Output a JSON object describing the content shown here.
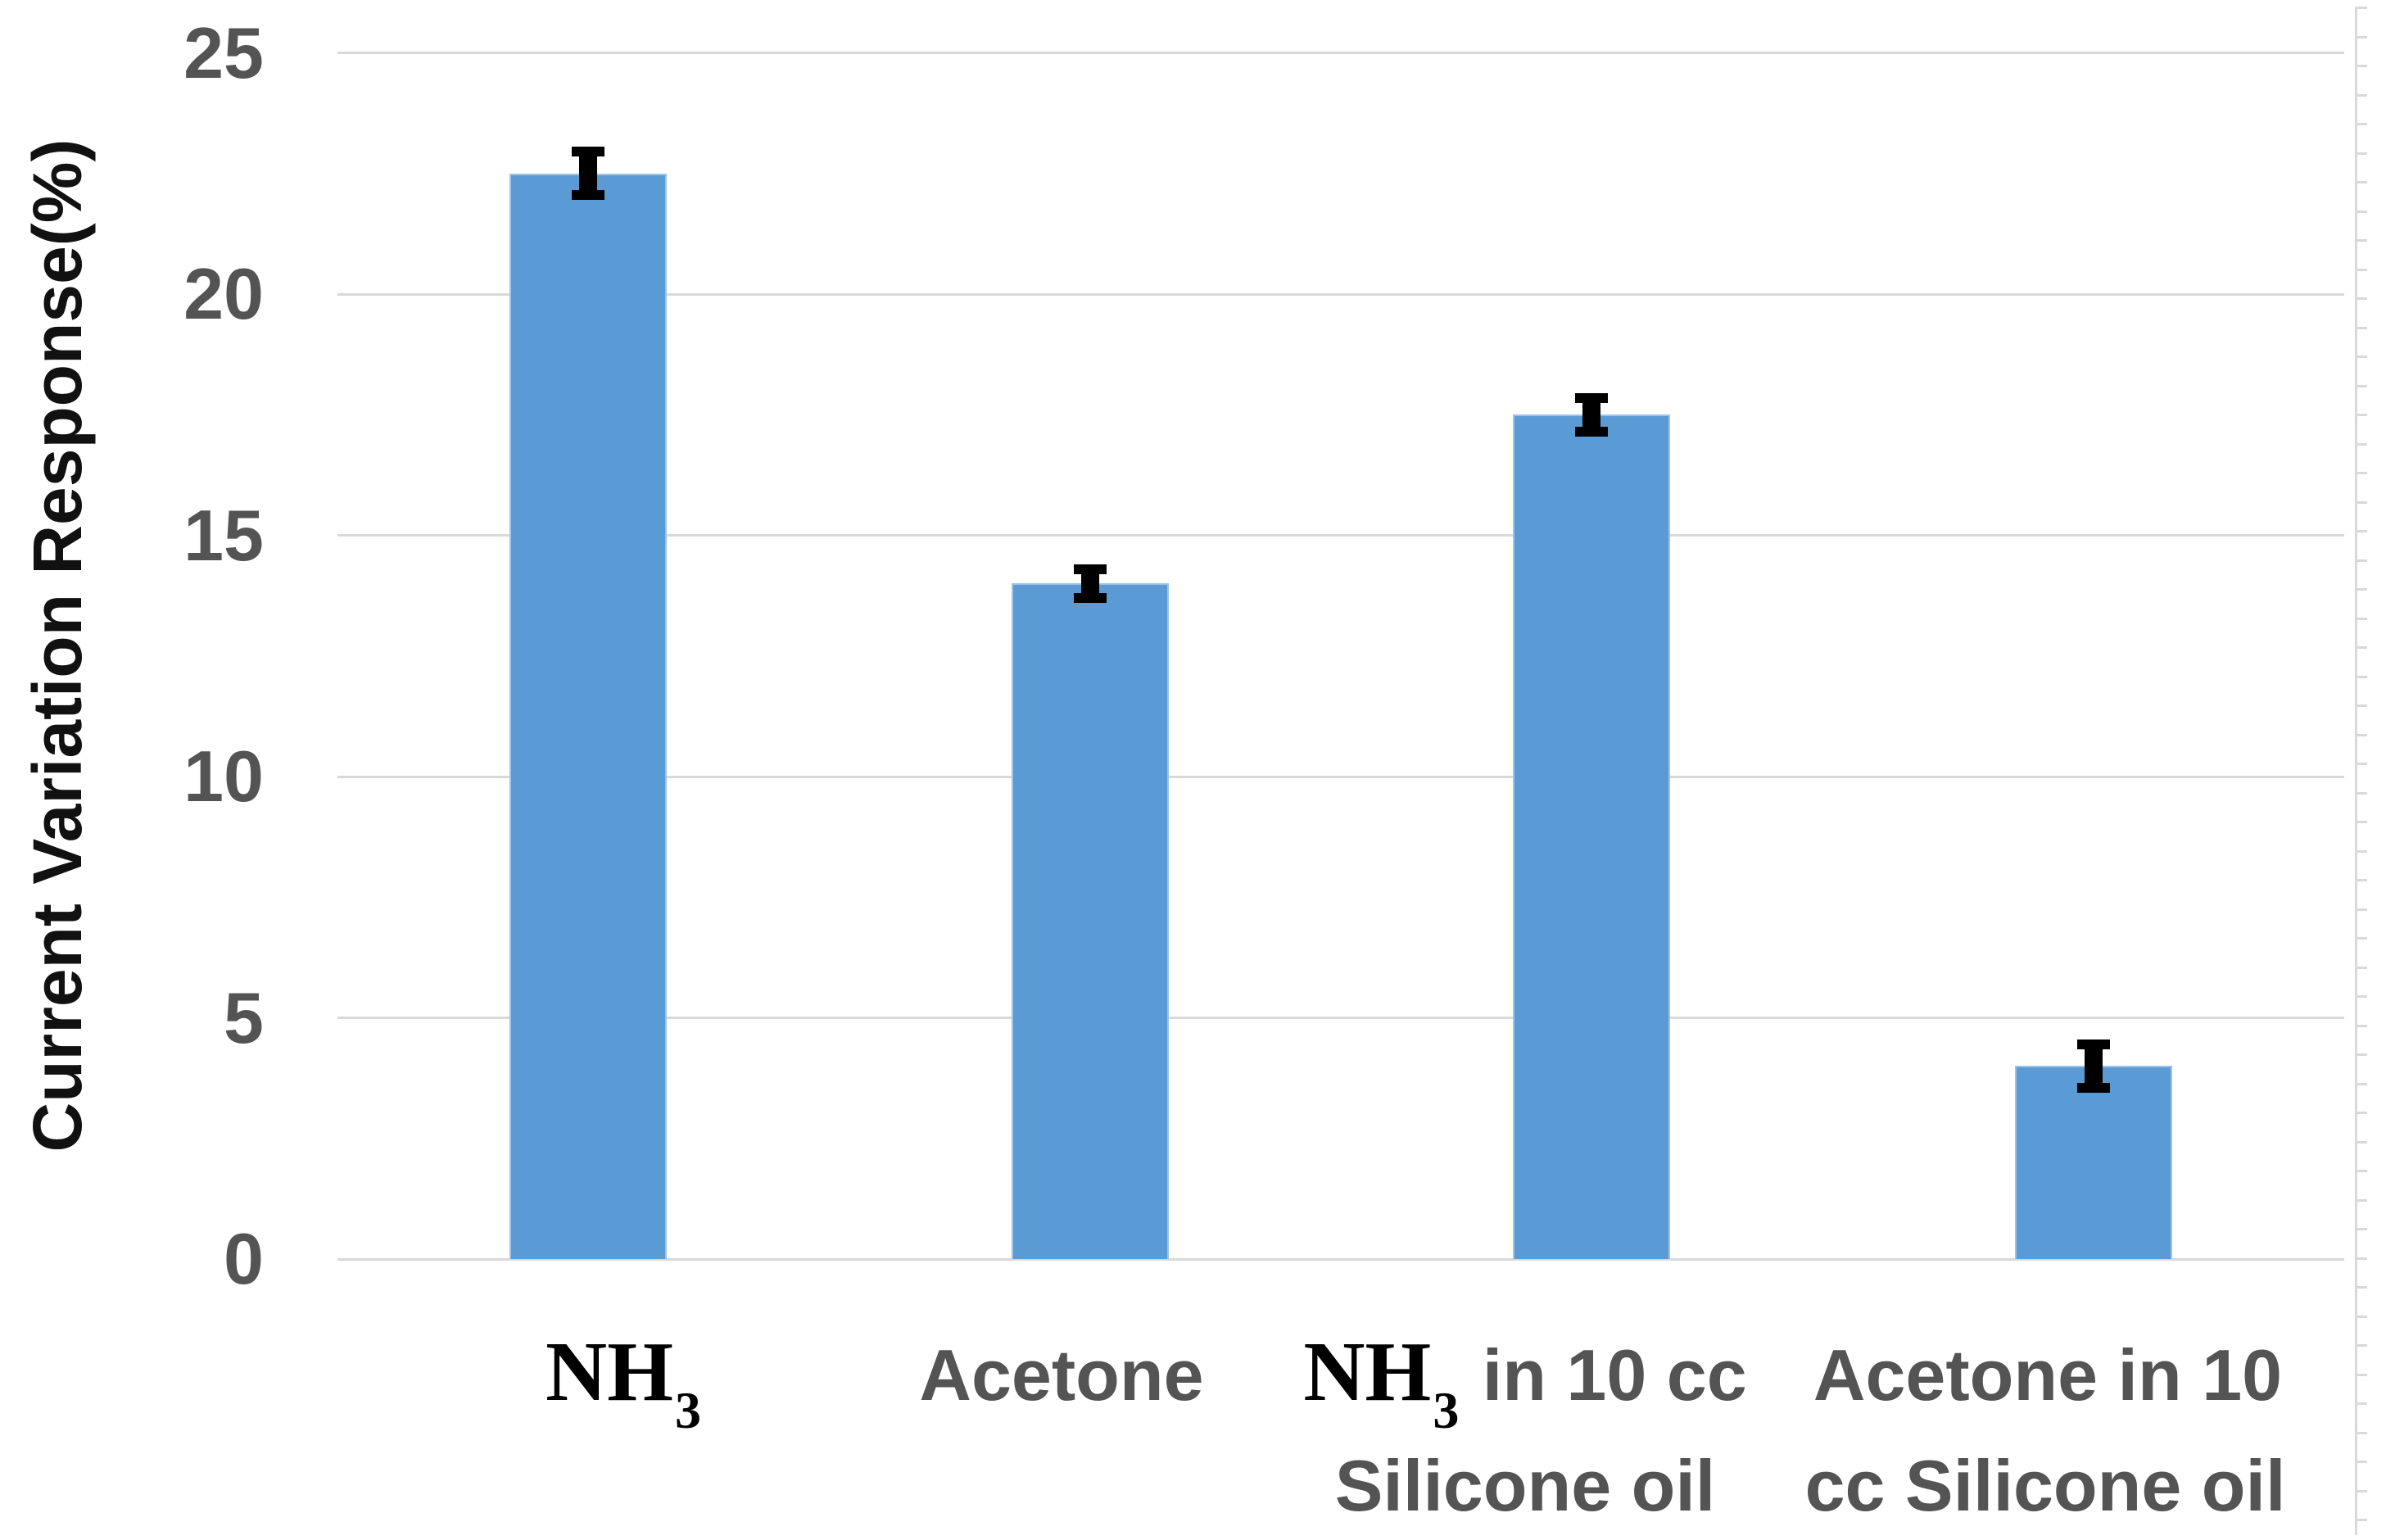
{
  "chart_data": {
    "type": "bar",
    "title": "",
    "xlabel": "",
    "ylabel": "Current Variation Response(%)",
    "categories": [
      "NH3",
      "Acetone",
      "NH3 in 10 cc Silicone oil",
      "Acetone in 10 cc Silicone oil"
    ],
    "values": [
      22.5,
      14,
      17.5,
      4
    ],
    "error_bars": [
      0.45,
      0.3,
      0.35,
      0.45
    ],
    "yticks": [
      0,
      5,
      10,
      15,
      20,
      25
    ],
    "ylim": [
      0,
      25
    ],
    "grid": true,
    "legend": false,
    "gridline_orientation": "horizontal",
    "categories_rich": [
      {
        "formula": "NH",
        "sub": "3",
        "tail": "",
        "line2": ""
      },
      {
        "formula": "",
        "sub": "",
        "tail": "Acetone",
        "line2": ""
      },
      {
        "formula": "NH",
        "sub": "3",
        "tail": " in 10 cc",
        "line2": "Silicone oil"
      },
      {
        "formula": "",
        "sub": "",
        "tail": "Acetone in 10",
        "line2": "cc Silicone oil"
      }
    ]
  },
  "colors": {
    "background": "#FFFFFF",
    "bar_fill": "#5B9BD5",
    "bar_border": "#9DC3E6",
    "gridline": "#D9D9D9",
    "axis_line": "#D9D9D9",
    "tick_label": "#545454",
    "category_label": "#545454",
    "axis_title": "#111111",
    "formula_color": "#000000",
    "error_bar": "#000000"
  }
}
